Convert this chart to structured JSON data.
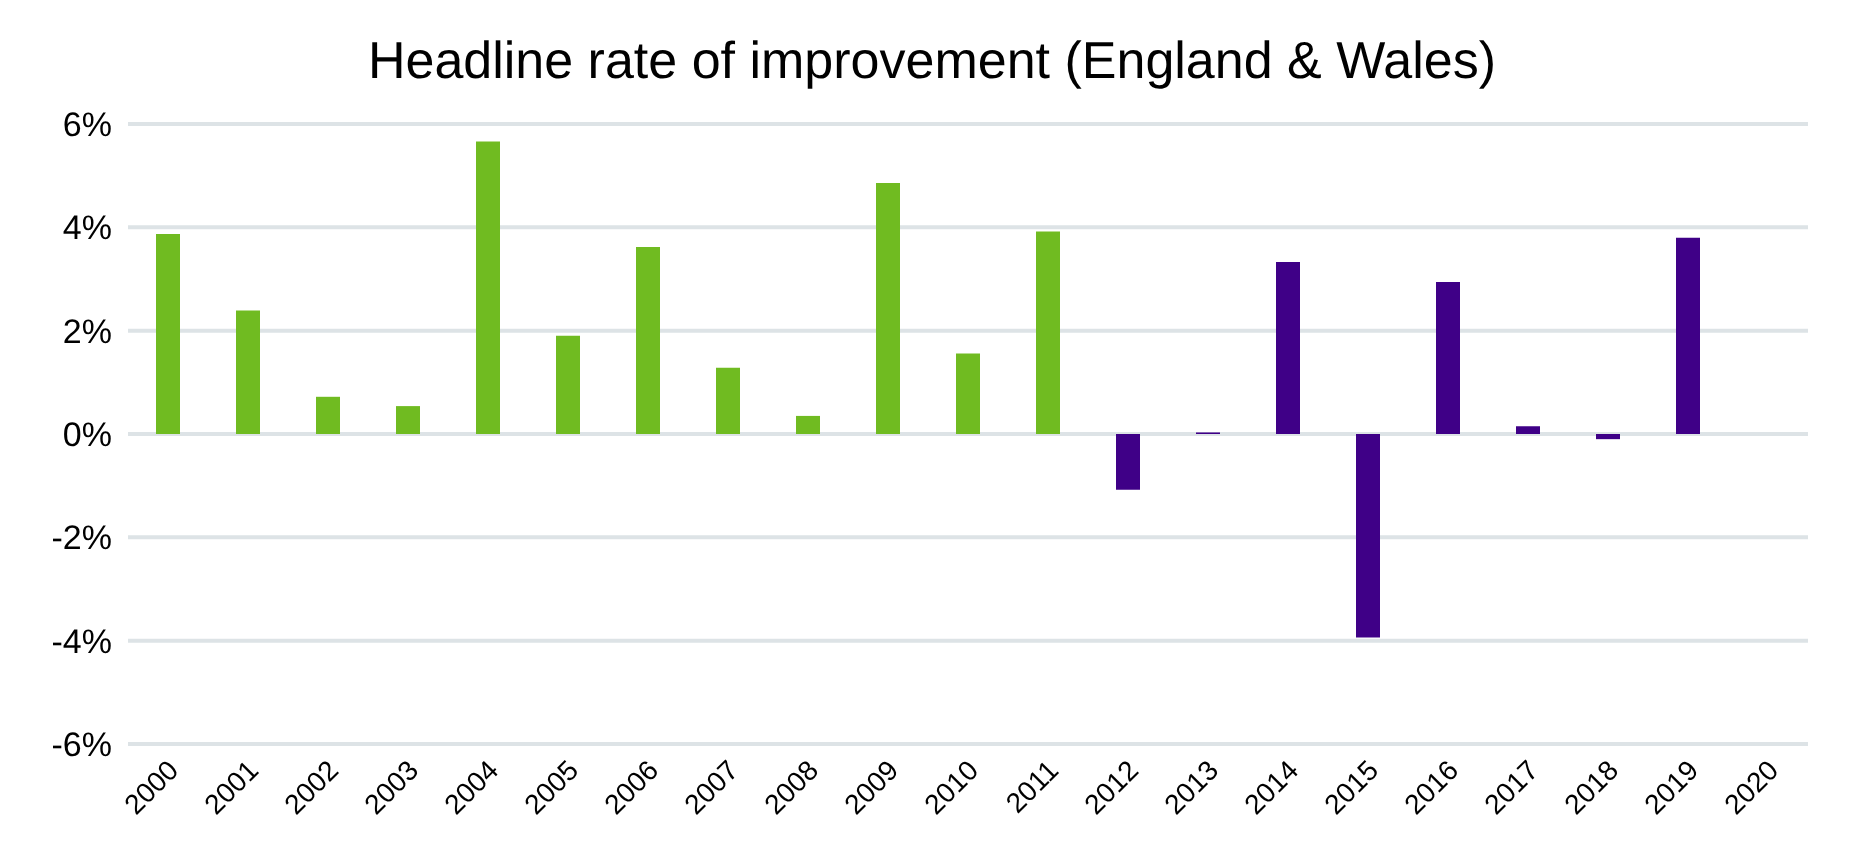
{
  "chart_data": {
    "type": "bar",
    "title": "Headline rate of improvement (England & Wales)",
    "categories": [
      "2000",
      "2001",
      "2002",
      "2003",
      "2004",
      "2005",
      "2006",
      "2007",
      "2008",
      "2009",
      "2010",
      "2011",
      "2012",
      "2013",
      "2014",
      "2015",
      "2016",
      "2017",
      "2018",
      "2019",
      "2020"
    ],
    "values": [
      3.87,
      2.39,
      0.72,
      0.54,
      5.66,
      1.9,
      3.62,
      1.28,
      0.35,
      4.86,
      1.56,
      3.92,
      -1.08,
      0.03,
      3.33,
      -3.94,
      2.94,
      0.15,
      -0.1,
      3.8,
      null
    ],
    "colors": [
      "#70bb21",
      "#70bb21",
      "#70bb21",
      "#70bb21",
      "#70bb21",
      "#70bb21",
      "#70bb21",
      "#70bb21",
      "#70bb21",
      "#70bb21",
      "#70bb21",
      "#70bb21",
      "#3f0087",
      "#3f0087",
      "#3f0087",
      "#3f0087",
      "#3f0087",
      "#3f0087",
      "#3f0087",
      "#3f0087",
      "#3f0087"
    ],
    "ylim": [
      -6,
      6
    ],
    "yticks": [
      {
        "value": -6,
        "label": "-6%"
      },
      {
        "value": -4,
        "label": "-4%"
      },
      {
        "value": -2,
        "label": "-2%"
      },
      {
        "value": 0,
        "label": "0%"
      },
      {
        "value": 2,
        "label": "2%"
      },
      {
        "value": 4,
        "label": "4%"
      },
      {
        "value": 6,
        "label": "6%"
      }
    ],
    "grid": "y"
  }
}
